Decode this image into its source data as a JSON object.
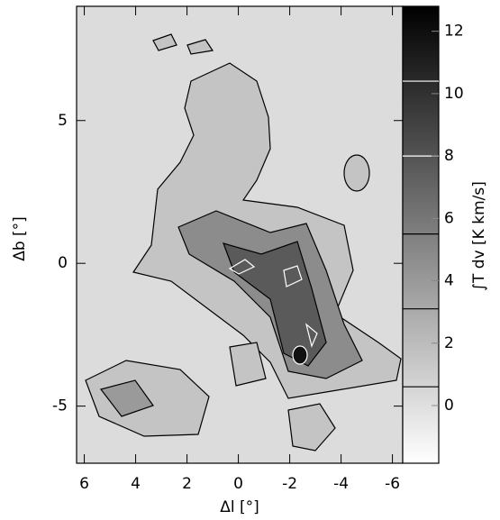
{
  "chart_data": {
    "type": "map",
    "xlabel": "Δl [°]",
    "ylabel": "Δb [°]",
    "colorbar_label": "∫T dv [K km/s]",
    "xlim": [
      6.3,
      -6.4
    ],
    "xticks": [
      6,
      4,
      2,
      0,
      -2,
      -4,
      -6
    ],
    "ylim": [
      -7,
      9
    ],
    "yticks": [
      5,
      0,
      -5
    ],
    "clim": [
      -1.85,
      12.8
    ],
    "cticks": [
      12,
      10,
      8,
      6,
      4,
      2,
      0
    ],
    "colormap": [
      "#ffffff",
      "#000000"
    ],
    "contour_levels": [
      0.6,
      3.1,
      5.5,
      8.0,
      10.4
    ],
    "contour_colors": [
      "#000000",
      "#000000",
      "#000000",
      "#ffffff",
      "#ffffff"
    ]
  }
}
